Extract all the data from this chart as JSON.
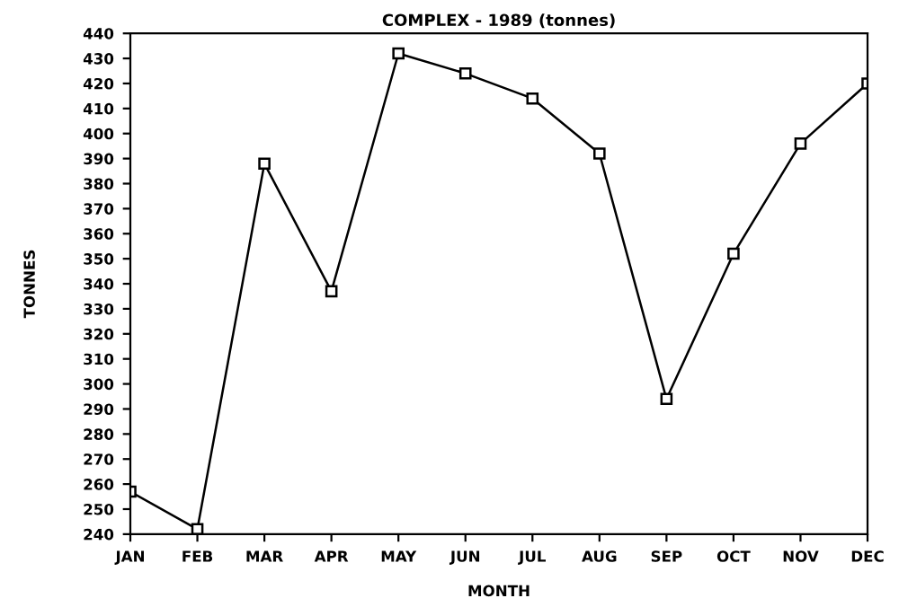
{
  "chart_data": {
    "type": "line",
    "title": "COMPLEX - 1989 (tonnes)",
    "xlabel": "MONTH",
    "ylabel": "TONNES",
    "categories": [
      "JAN",
      "FEB",
      "MAR",
      "APR",
      "MAY",
      "JUN",
      "JUL",
      "AUG",
      "SEP",
      "OCT",
      "NOV",
      "DEC"
    ],
    "series": [
      {
        "color": "#000000",
        "values": [
          257,
          242,
          388,
          337,
          432,
          424,
          414,
          392,
          294,
          352,
          396,
          420
        ]
      }
    ],
    "ylim": [
      240,
      440
    ],
    "yticks": [
      240,
      250,
      260,
      270,
      280,
      290,
      300,
      310,
      320,
      330,
      340,
      350,
      360,
      370,
      380,
      390,
      400,
      410,
      420,
      430,
      440
    ],
    "grid": false,
    "marker": "square",
    "line_style": "solid"
  }
}
